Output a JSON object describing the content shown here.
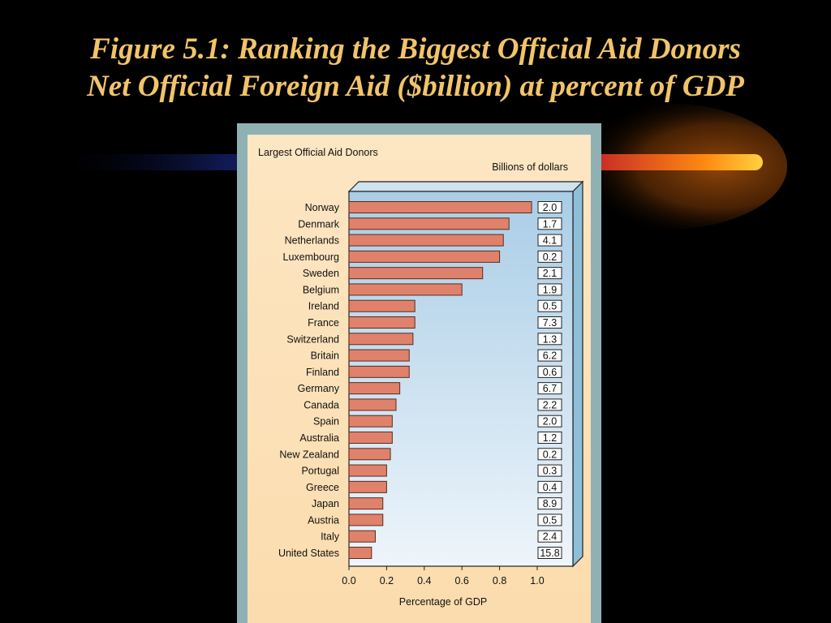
{
  "slide": {
    "title_line1": "Figure 5.1: Ranking the Biggest Official Aid Donors",
    "title_line2": "Net Official Foreign Aid ($billion) at percent of GDP"
  },
  "colors": {
    "background": "#000000",
    "title": "#f2c46a",
    "bar_fill": "#e0826b",
    "bar_stroke": "#5a2a1e",
    "plot_bg_top": "#a9cde6",
    "plot_bg_bottom": "#eef5fb"
  },
  "chart_data": {
    "type": "bar",
    "orientation": "horizontal",
    "title": "Largest Official Aid Donors",
    "secondary_label": "Billions of dollars",
    "xlabel": "Percentage of GDP",
    "ylabel": "",
    "xlim": [
      0,
      1.0
    ],
    "xticks": [
      "0.0",
      "0.2",
      "0.4",
      "0.6",
      "0.8",
      "1.0"
    ],
    "grid": false,
    "categories": [
      "Norway",
      "Denmark",
      "Netherlands",
      "Luxembourg",
      "Sweden",
      "Belgium",
      "Ireland",
      "France",
      "Switzerland",
      "Britain",
      "Finland",
      "Germany",
      "Canada",
      "Spain",
      "Australia",
      "New Zealand",
      "Portugal",
      "Greece",
      "Japan",
      "Austria",
      "Italy",
      "United States"
    ],
    "values": [
      0.97,
      0.85,
      0.82,
      0.8,
      0.71,
      0.6,
      0.35,
      0.35,
      0.34,
      0.32,
      0.32,
      0.27,
      0.25,
      0.23,
      0.23,
      0.22,
      0.2,
      0.2,
      0.18,
      0.18,
      0.14,
      0.12
    ],
    "billions": [
      "2.0",
      "1.7",
      "4.1",
      "0.2",
      "2.1",
      "1.9",
      "0.5",
      "7.3",
      "1.3",
      "6.2",
      "0.6",
      "6.7",
      "2.2",
      "2.0",
      "1.2",
      "0.2",
      "0.3",
      "0.4",
      "8.9",
      "0.5",
      "2.4",
      "15.8"
    ]
  }
}
